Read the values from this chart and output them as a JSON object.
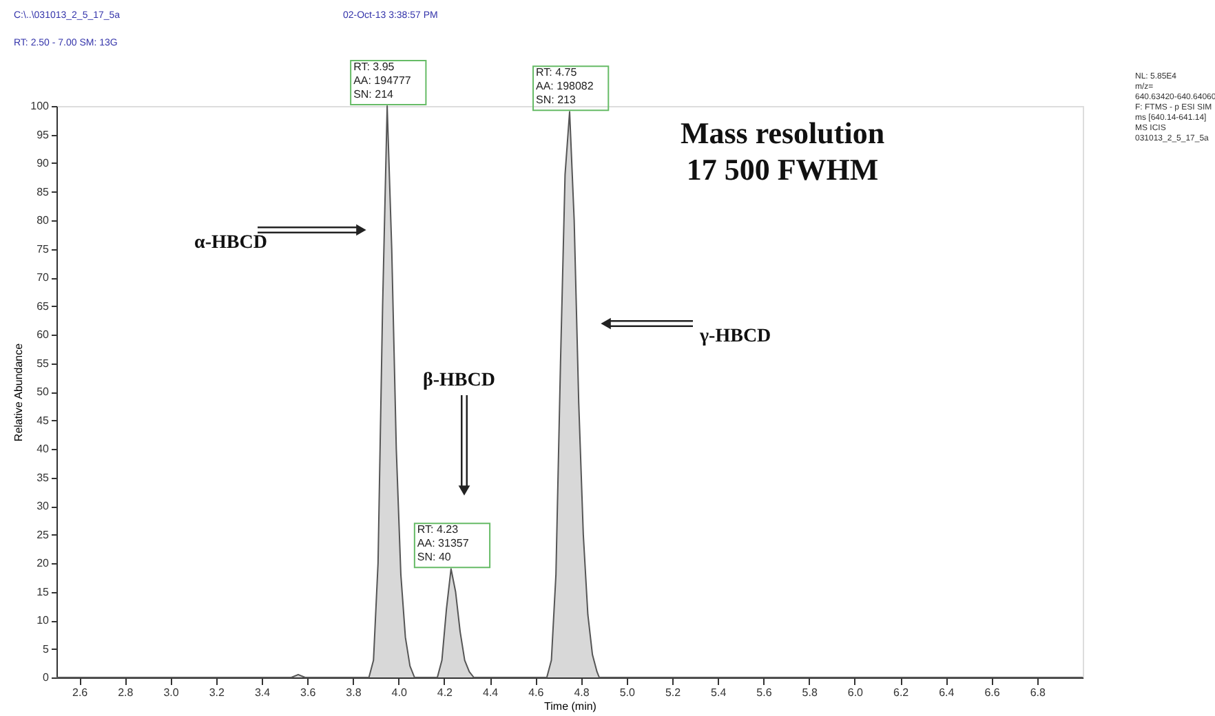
{
  "chart_data": {
    "type": "area",
    "xlabel": "Time (min)",
    "ylabel": "Relative Abundance",
    "annotations": [
      "C:\\..\\031013_2_5_17_5a",
      "02-Oct-13 3:38:57 PM",
      "RT: 2.50 - 7.00  SM: 13G",
      "NL: 5.85E4\nm/z=\n640.63420-640.64060\nF: FTMS - p ESI SIM\nms [640.14-641.14]\nMS  ICIS\n031013_2_5_17_5a",
      "Mass resolution\n17 500 FWHM",
      "α-HBCD",
      "β-HBCD",
      "γ-HBCD",
      {
        "text": "RT: 3.95\nAA: 194777\nSN: 214",
        "x": 3.95,
        "y": 100
      },
      {
        "text": "RT: 4.23\nAA: 31357\nSN: 40",
        "x": 4.23,
        "y": 19
      },
      {
        "text": "RT: 4.75\nAA: 198082\nSN: 213",
        "x": 4.75,
        "y": 99
      }
    ],
    "series": [
      {
        "color": "#c8c8c8",
        "x": [
          2.5,
          3.53,
          3.56,
          3.59,
          3.87,
          3.89,
          3.91,
          3.93,
          3.95,
          3.97,
          3.99,
          4.01,
          4.03,
          4.05,
          4.07,
          4.17,
          4.19,
          4.21,
          4.23,
          4.25,
          4.27,
          4.29,
          4.31,
          4.33,
          4.65,
          4.67,
          4.69,
          4.71,
          4.73,
          4.75,
          4.77,
          4.79,
          4.81,
          4.83,
          4.85,
          4.87,
          4.88,
          7.0
        ],
        "values": [
          0,
          0,
          0.5,
          0,
          0,
          3,
          20,
          65,
          100,
          75,
          40,
          18,
          7,
          2,
          0,
          0,
          3,
          12,
          19,
          15,
          8,
          3,
          1,
          0,
          0,
          3,
          18,
          55,
          88,
          99,
          80,
          48,
          25,
          11,
          4,
          1,
          0,
          0
        ]
      }
    ],
    "xlim": [
      2.5,
      7.0
    ],
    "xticks": [
      2.6,
      2.8,
      {
        "value": 3,
        "label": "3.0"
      },
      3.2,
      3.4,
      3.6,
      3.8,
      {
        "value": 4,
        "label": "4.0"
      },
      4.2,
      4.4,
      4.6,
      4.8,
      {
        "value": 5,
        "label": "5.0"
      },
      5.2,
      5.4,
      5.6,
      5.8,
      {
        "value": 6,
        "label": "6.0"
      },
      6.2,
      6.4,
      6.6,
      6.8
    ],
    "ylim": [
      0,
      100
    ],
    "yticks": [
      0,
      5,
      10,
      15,
      20,
      25,
      30,
      35,
      40,
      45,
      50,
      55,
      60,
      65,
      70,
      75,
      80,
      85,
      90,
      95,
      100
    ],
    "grid": false
  }
}
